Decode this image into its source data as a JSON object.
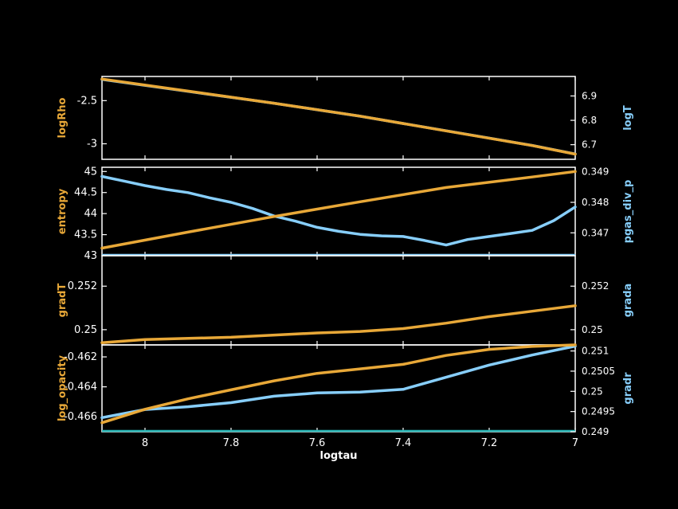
{
  "colors": {
    "background": "#000000",
    "frame": "#ffffff",
    "left_series": "#e8a838",
    "right_series": "#87cefa",
    "baseline": "#2ab8b8"
  },
  "chart_data": [
    {
      "type": "line",
      "xlabel": "",
      "xlim": [
        8.1,
        7.0
      ],
      "left_axis": {
        "label": "logRho",
        "ylim": [
          -3.18,
          -2.22
        ],
        "ticks": [
          -2.5,
          -3
        ],
        "tick_labels": [
          "-2.5",
          "-3"
        ]
      },
      "right_axis": {
        "label": "logT",
        "ylim": [
          6.64,
          6.98
        ],
        "ticks": [
          6.9,
          6.8,
          6.7
        ],
        "tick_labels": [
          "6.9",
          "6.8",
          "6.7"
        ]
      },
      "series": [
        {
          "axis": "left",
          "x": [
            8.1,
            7.9,
            7.7,
            7.5,
            7.3,
            7.1,
            7.0
          ],
          "y": [
            -2.25,
            -2.39,
            -2.53,
            -2.68,
            -2.85,
            -3.02,
            -3.12
          ]
        },
        {
          "axis": "right",
          "x": [
            8.1,
            7.9,
            7.7,
            7.5,
            7.3,
            7.1,
            7.0
          ],
          "y": [
            6.968,
            6.919,
            6.87,
            6.817,
            6.757,
            6.697,
            6.662
          ]
        }
      ]
    },
    {
      "type": "line",
      "xlabel": "",
      "xlim": [
        8.1,
        7.0
      ],
      "left_axis": {
        "label": "entropy",
        "ylim": [
          43.0,
          45.1
        ],
        "ticks": [
          45,
          44.5,
          44,
          43.5,
          43
        ],
        "tick_labels": [
          "45",
          "44.5",
          "44",
          "43.5",
          "43"
        ]
      },
      "right_axis": {
        "label": "pgas_div_p",
        "ylim": [
          0.34625,
          0.34915
        ],
        "ticks": [
          0.349,
          0.348,
          0.347
        ],
        "tick_labels": [
          "0.349",
          "0.348",
          "0.347"
        ]
      },
      "baseline": 43.0,
      "series": [
        {
          "axis": "left",
          "x": [
            8.1,
            7.9,
            7.7,
            7.5,
            7.3,
            7.1,
            7.0
          ],
          "y": [
            43.18,
            43.56,
            43.93,
            44.28,
            44.62,
            44.87,
            45.0
          ]
        },
        {
          "axis": "right",
          "x": [
            8.1,
            8.05,
            8.0,
            7.95,
            7.9,
            7.85,
            7.8,
            7.75,
            7.7,
            7.65,
            7.6,
            7.55,
            7.5,
            7.45,
            7.4,
            7.35,
            7.3,
            7.25,
            7.2,
            7.15,
            7.1,
            7.05,
            7.0
          ],
          "y": [
            0.34885,
            0.3487,
            0.34855,
            0.34842,
            0.34832,
            0.34815,
            0.348,
            0.3478,
            0.34755,
            0.34738,
            0.34718,
            0.34705,
            0.34695,
            0.3469,
            0.34688,
            0.34675,
            0.3466,
            0.34678,
            0.34688,
            0.34698,
            0.34708,
            0.3474,
            0.34785
          ]
        }
      ]
    },
    {
      "type": "line",
      "xlabel": "",
      "xlim": [
        8.1,
        7.0
      ],
      "left_axis": {
        "label": "gradT",
        "ylim": [
          0.2493,
          0.2534
        ],
        "ticks": [
          0.252,
          0.25
        ],
        "tick_labels": [
          "0.252",
          "0.25"
        ]
      },
      "right_axis": {
        "label": "grada",
        "ylim": [
          0.2493,
          0.2534
        ],
        "ticks": [
          0.252,
          0.25
        ],
        "tick_labels": [
          "0.252",
          "0.25"
        ]
      },
      "series": [
        {
          "axis": "left",
          "x": [
            8.1,
            8.0,
            7.8,
            7.6,
            7.5,
            7.4,
            7.3,
            7.2,
            7.1,
            7.0
          ],
          "y": [
            0.2494,
            0.24955,
            0.24965,
            0.24985,
            0.24992,
            0.25005,
            0.2503,
            0.2506,
            0.25085,
            0.2511
          ]
        }
      ]
    },
    {
      "type": "line",
      "xlabel": "logtau",
      "xlim": [
        8.1,
        7.0
      ],
      "xticks": [
        8,
        7.8,
        7.6,
        7.4,
        7.2,
        7
      ],
      "xtick_labels": [
        "8",
        "7.8",
        "7.6",
        "7.4",
        "7.2",
        "7"
      ],
      "left_axis": {
        "label": "log_opacity",
        "ylim": [
          -0.467,
          -0.4612
        ],
        "ticks": [
          -0.462,
          -0.464,
          -0.466
        ],
        "tick_labels": [
          "-0.462",
          "-0.464",
          "-0.466"
        ]
      },
      "right_axis": {
        "label": "gradr",
        "ylim": [
          0.249,
          0.25115
        ],
        "ticks": [
          0.251,
          0.2505,
          0.25,
          0.2495,
          0.249
        ],
        "tick_labels": [
          "0.251",
          "0.2505",
          "0.25",
          "0.2495",
          "0.249"
        ]
      },
      "baseline": -0.467,
      "series": [
        {
          "axis": "left",
          "x": [
            8.1,
            8.0,
            7.9,
            7.8,
            7.7,
            7.6,
            7.5,
            7.4,
            7.3,
            7.2,
            7.1,
            7.0
          ],
          "y": [
            -0.4664,
            -0.4655,
            -0.4648,
            -0.4642,
            -0.4636,
            -0.4631,
            -0.4628,
            -0.4625,
            -0.4619,
            -0.4615,
            -0.4613,
            -0.4612
          ]
        },
        {
          "axis": "right",
          "x": [
            8.1,
            8.0,
            7.9,
            7.8,
            7.7,
            7.6,
            7.5,
            7.4,
            7.3,
            7.2,
            7.1,
            7.0
          ],
          "y": [
            0.24935,
            0.24955,
            0.24962,
            0.24972,
            0.24988,
            0.24996,
            0.24998,
            0.25005,
            0.25035,
            0.25065,
            0.2509,
            0.25112
          ]
        }
      ]
    }
  ]
}
